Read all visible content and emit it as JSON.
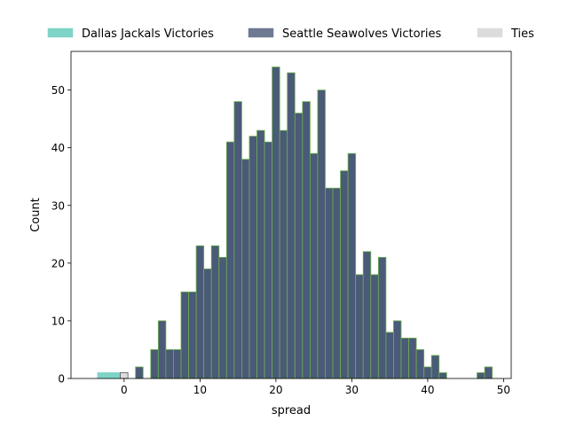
{
  "chart_data": {
    "type": "bar",
    "title": "",
    "xlabel": "spread",
    "ylabel": "Count",
    "xlim": [
      -7,
      51
    ],
    "ylim": [
      0,
      56.7
    ],
    "x_ticks": [
      0,
      10,
      20,
      30,
      40,
      50
    ],
    "y_ticks": [
      0,
      10,
      20,
      30,
      40,
      50
    ],
    "grid": false,
    "legend_position": "top",
    "bin_width": 1,
    "series": [
      {
        "name": "Dallas Jackals Victories",
        "color": "#7fd3c7",
        "edge_color": "#7fd3c7",
        "bins": [
          {
            "x": -3,
            "count": 1
          },
          {
            "x": -2,
            "count": 1
          },
          {
            "x": -1,
            "count": 1
          }
        ]
      },
      {
        "name": "Seattle Seawolves Victories",
        "color": "#4a5a78",
        "edge_color": "#6ab04c",
        "bins": [
          {
            "x": 1,
            "count": 0
          },
          {
            "x": 2,
            "count": 2
          },
          {
            "x": 3,
            "count": 0
          },
          {
            "x": 4,
            "count": 5
          },
          {
            "x": 5,
            "count": 10
          },
          {
            "x": 6,
            "count": 5
          },
          {
            "x": 7,
            "count": 5
          },
          {
            "x": 8,
            "count": 15
          },
          {
            "x": 9,
            "count": 15
          },
          {
            "x": 10,
            "count": 23
          },
          {
            "x": 11,
            "count": 19
          },
          {
            "x": 12,
            "count": 23
          },
          {
            "x": 13,
            "count": 21
          },
          {
            "x": 14,
            "count": 41
          },
          {
            "x": 15,
            "count": 48
          },
          {
            "x": 16,
            "count": 38
          },
          {
            "x": 17,
            "count": 42
          },
          {
            "x": 18,
            "count": 43
          },
          {
            "x": 19,
            "count": 41
          },
          {
            "x": 20,
            "count": 54
          },
          {
            "x": 21,
            "count": 43
          },
          {
            "x": 22,
            "count": 53
          },
          {
            "x": 23,
            "count": 46
          },
          {
            "x": 24,
            "count": 48
          },
          {
            "x": 25,
            "count": 39
          },
          {
            "x": 26,
            "count": 50
          },
          {
            "x": 27,
            "count": 33
          },
          {
            "x": 28,
            "count": 33
          },
          {
            "x": 29,
            "count": 36
          },
          {
            "x": 30,
            "count": 39
          },
          {
            "x": 31,
            "count": 18
          },
          {
            "x": 32,
            "count": 22
          },
          {
            "x": 33,
            "count": 18
          },
          {
            "x": 34,
            "count": 21
          },
          {
            "x": 35,
            "count": 8
          },
          {
            "x": 36,
            "count": 10
          },
          {
            "x": 37,
            "count": 7
          },
          {
            "x": 38,
            "count": 7
          },
          {
            "x": 39,
            "count": 5
          },
          {
            "x": 40,
            "count": 2
          },
          {
            "x": 41,
            "count": 4
          },
          {
            "x": 42,
            "count": 1
          },
          {
            "x": 43,
            "count": 0
          },
          {
            "x": 44,
            "count": 0
          },
          {
            "x": 45,
            "count": 0
          },
          {
            "x": 46,
            "count": 0
          },
          {
            "x": 47,
            "count": 1
          },
          {
            "x": 48,
            "count": 2
          }
        ]
      },
      {
        "name": "Ties",
        "color": "#dcdcdc",
        "edge_color": "#555555",
        "bins": [
          {
            "x": 0,
            "count": 1
          }
        ]
      }
    ]
  }
}
